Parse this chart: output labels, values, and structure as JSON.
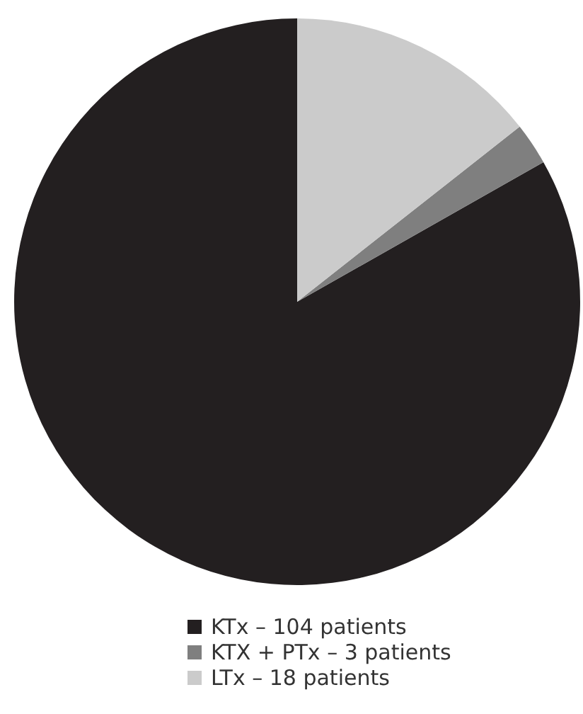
{
  "chart_data": {
    "type": "pie",
    "categories": [
      "KTx",
      "KTX + PTx",
      "LTx"
    ],
    "values": [
      104,
      3,
      18
    ],
    "value_labels": [
      "104 patients",
      "3 patients",
      "18 patients"
    ],
    "colors": [
      "#231f20",
      "#7f7f7f",
      "#cbcbcb"
    ],
    "legend": "bottom"
  }
}
